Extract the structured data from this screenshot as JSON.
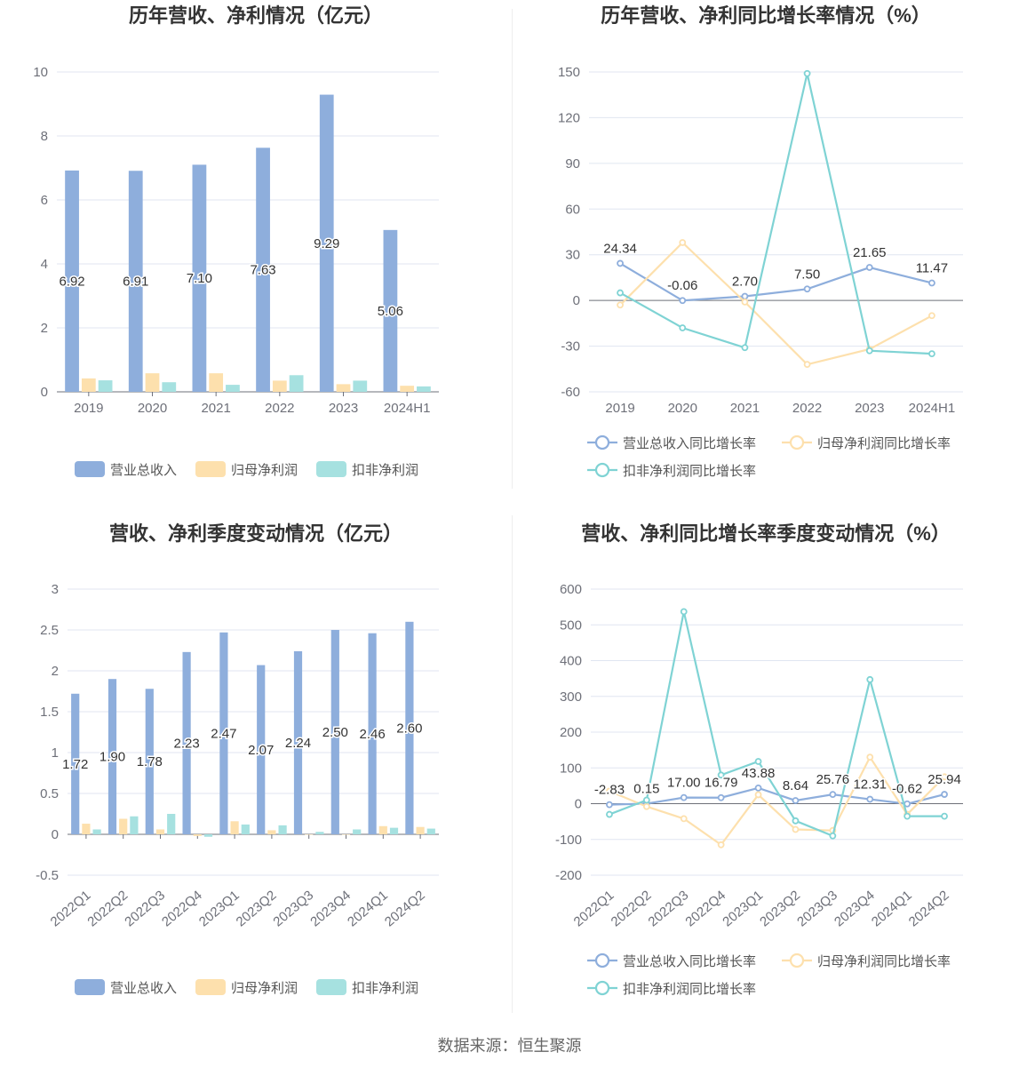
{
  "source": "数据来源：恒生聚源",
  "colors": {
    "revenue": "#8eaedc",
    "net_profit": "#fde0ad",
    "deducted": "#a6e1e0",
    "line_revenue": "#8eaedc",
    "line_net": "#fde0ad",
    "line_deducted": "#7fd3d4"
  },
  "chart_data": [
    {
      "type": "bar",
      "title": "历年营收、净利情况（亿元）",
      "categories": [
        "2019",
        "2020",
        "2021",
        "2022",
        "2023",
        "2024H1"
      ],
      "ylim": [
        0,
        10
      ],
      "yticks": [
        "0",
        "2",
        "4",
        "6",
        "8",
        "10"
      ],
      "legend_position": "bottom",
      "series": [
        {
          "name": "营业总收入",
          "values": [
            6.92,
            6.91,
            7.1,
            7.63,
            9.29,
            5.06
          ],
          "labels": [
            "6.92",
            "6.91",
            "7.10",
            "7.63",
            "9.29",
            "5.06"
          ]
        },
        {
          "name": "归母净利润",
          "values": [
            0.42,
            0.58,
            0.58,
            0.35,
            0.24,
            0.19
          ]
        },
        {
          "name": "扣非净利润",
          "values": [
            0.36,
            0.3,
            0.22,
            0.52,
            0.35,
            0.17
          ]
        }
      ]
    },
    {
      "type": "line",
      "title": "历年营收、净利同比增长率情况（%）",
      "categories": [
        "2019",
        "2020",
        "2021",
        "2022",
        "2023",
        "2024H1"
      ],
      "ylim": [
        -60,
        150
      ],
      "yticks": [
        "-60",
        "-30",
        "0",
        "30",
        "60",
        "90",
        "120",
        "150"
      ],
      "legend_position": "bottom",
      "series": [
        {
          "name": "营业总收入同比增长率",
          "values": [
            24.34,
            -0.06,
            2.7,
            7.5,
            21.65,
            11.47
          ],
          "labels": [
            "24.34",
            "-0.06",
            "2.70",
            "7.50",
            "21.65",
            "11.47"
          ]
        },
        {
          "name": "归母净利润同比增长率",
          "values": [
            -3,
            38,
            -1,
            -42,
            -32,
            -10
          ]
        },
        {
          "name": "扣非净利润同比增长率",
          "values": [
            5,
            -18,
            -31,
            149,
            -33,
            -35
          ]
        }
      ]
    },
    {
      "type": "bar",
      "title": "营收、净利季度变动情况（亿元）",
      "categories": [
        "2022Q1",
        "2022Q2",
        "2022Q3",
        "2022Q4",
        "2023Q1",
        "2023Q2",
        "2023Q3",
        "2023Q4",
        "2024Q1",
        "2024Q2"
      ],
      "ylim": [
        -0.5,
        3
      ],
      "yticks": [
        "-0.5",
        "0",
        "0.5",
        "1",
        "1.5",
        "2",
        "2.5",
        "3"
      ],
      "legend_position": "bottom",
      "series": [
        {
          "name": "营业总收入",
          "values": [
            1.72,
            1.9,
            1.78,
            2.23,
            2.47,
            2.07,
            2.24,
            2.5,
            2.46,
            2.6
          ],
          "labels": [
            "1.72",
            "1.90",
            "1.78",
            "2.23",
            "2.47",
            "2.07",
            "2.24",
            "2.50",
            "2.46",
            "2.60"
          ]
        },
        {
          "name": "归母净利润",
          "values": [
            0.13,
            0.19,
            0.06,
            -0.02,
            0.16,
            0.05,
            0.0,
            0.0,
            0.1,
            0.09
          ]
        },
        {
          "name": "扣非净利润",
          "values": [
            0.06,
            0.22,
            0.25,
            -0.03,
            0.12,
            0.11,
            0.03,
            0.06,
            0.08,
            0.07
          ]
        }
      ]
    },
    {
      "type": "line",
      "title": "营收、净利同比增长率季度变动情况（%）",
      "categories": [
        "2022Q1",
        "2022Q2",
        "2022Q3",
        "2022Q4",
        "2023Q1",
        "2023Q2",
        "2023Q3",
        "2023Q4",
        "2024Q1",
        "2024Q2"
      ],
      "ylim": [
        -200,
        600
      ],
      "yticks": [
        "-200",
        "-100",
        "0",
        "100",
        "200",
        "300",
        "400",
        "500",
        "600"
      ],
      "legend_position": "bottom",
      "series": [
        {
          "name": "营业总收入同比增长率",
          "values": [
            -2.83,
            0.15,
            17.0,
            16.79,
            43.88,
            8.64,
            25.76,
            12.31,
            -0.62,
            25.94
          ],
          "labels": [
            "-2.83",
            "0.15",
            "17.00",
            "16.79",
            "43.88",
            "8.64",
            "25.76",
            "12.31",
            "-0.62",
            "25.94"
          ]
        },
        {
          "name": "归母净利润同比增长率",
          "values": [
            35,
            -8,
            -42,
            -115,
            25,
            -72,
            -75,
            130,
            -30,
            75
          ]
        },
        {
          "name": "扣非净利润同比增长率",
          "values": [
            -30,
            10,
            537,
            80,
            118,
            -48,
            -90,
            347,
            -35,
            -35
          ]
        }
      ]
    }
  ]
}
